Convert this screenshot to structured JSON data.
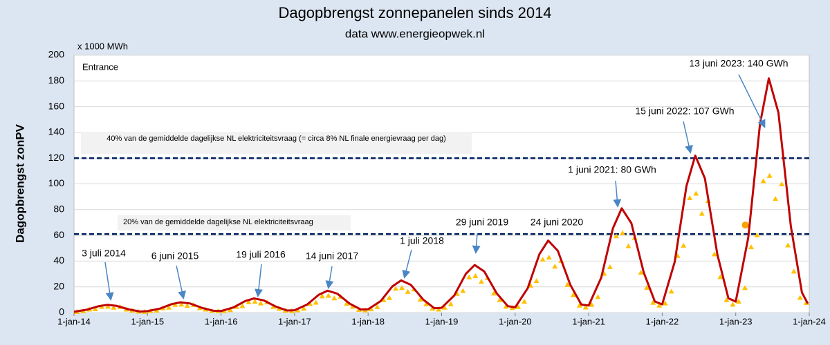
{
  "chart_data": {
    "type": "scatter",
    "title": "Dagopbrengst zonnepanelen sinds 2014",
    "subtitle": "data www.energieopwek.nl",
    "y_unit": "x 1000 MWh",
    "y_label": "Dagopbrengst zonPV",
    "inset_label": "Entrance",
    "xlim": [
      2014,
      2024
    ],
    "xticks": [
      {
        "value": 2014,
        "label": "1-jan-14"
      },
      {
        "value": 2015,
        "label": "1-jan-15"
      },
      {
        "value": 2016,
        "label": "1-jan-16"
      },
      {
        "value": 2017,
        "label": "1-jan-17"
      },
      {
        "value": 2018,
        "label": "1-jan-18"
      },
      {
        "value": 2019,
        "label": "1-jan-19"
      },
      {
        "value": 2020,
        "label": "1-jan-20"
      },
      {
        "value": 2021,
        "label": "1-jan-21"
      },
      {
        "value": 2022,
        "label": "1-jan-22"
      },
      {
        "value": 2023,
        "label": "1-jan-23"
      },
      {
        "value": 2024,
        "label": "1-jan-24"
      }
    ],
    "ylim": [
      0,
      200
    ],
    "yticks": [
      0,
      20,
      40,
      60,
      80,
      100,
      120,
      140,
      160,
      180,
      200
    ],
    "grid": true,
    "reference_lines": [
      {
        "value": 120,
        "label": "40% van de gemiddelde dagelijkse NL elektriciteitsvraag (= circa 8% NL finale energievraag per dag)",
        "color": "#002060"
      },
      {
        "value": 61,
        "label": "20% van de gemiddelde dagelijkse NL elektriciteitsvraag",
        "color": "#002060"
      }
    ],
    "annotations": [
      "3 juli 2014",
      "6 juni 2015",
      "19 juli 2016",
      "14 juni 2017",
      "1 juli 2018",
      "29 juni 2019",
      "24 juni 2020",
      "1 juni 2021: 80 GWh",
      "15 juni 2022: 107 GWh",
      "13 juni 2023: 140 GWh"
    ],
    "curve": {
      "color": "#c00000",
      "x": [
        2014,
        2014.17,
        2014.33,
        2014.45,
        2014.58,
        2014.75,
        2014.9,
        2015,
        2015.17,
        2015.33,
        2015.45,
        2015.58,
        2015.75,
        2015.9,
        2016,
        2016.17,
        2016.33,
        2016.45,
        2016.58,
        2016.75,
        2016.9,
        2017,
        2017.17,
        2017.33,
        2017.45,
        2017.58,
        2017.75,
        2017.9,
        2018,
        2018.17,
        2018.33,
        2018.45,
        2018.58,
        2018.75,
        2018.9,
        2019,
        2019.17,
        2019.33,
        2019.45,
        2019.58,
        2019.75,
        2019.9,
        2020,
        2020.17,
        2020.33,
        2020.45,
        2020.58,
        2020.75,
        2020.9,
        2021,
        2021.17,
        2021.33,
        2021.45,
        2021.58,
        2021.75,
        2021.9,
        2022,
        2022.17,
        2022.33,
        2022.45,
        2022.58,
        2022.75,
        2022.9,
        2023,
        2023.17,
        2023.33,
        2023.45,
        2023.58,
        2023.75,
        2023.9,
        2023.98
      ],
      "values": [
        0.6,
        2.2,
        4.9,
        6,
        5.2,
        2.4,
        0.8,
        1.1,
        3.1,
        6.6,
        8,
        7,
        3.5,
        1.4,
        1.2,
        4,
        9,
        11,
        9.5,
        4.5,
        1.6,
        1.8,
        6.2,
        13.9,
        17,
        14.7,
        6.9,
        2.4,
        2.5,
        8.9,
        20.4,
        25,
        21.6,
        10.1,
        3.4,
        3.7,
        13.2,
        30.2,
        37,
        31.9,
        14.9,
        5,
        4.1,
        18.9,
        45.4,
        56,
        48,
        21.6,
        6.2,
        5.5,
        27.1,
        65.6,
        81,
        69.5,
        31,
        8.6,
        6.4,
        39.4,
        98.4,
        122,
        104.3,
        45.3,
        11.1,
        8.5,
        58.1,
        146.6,
        182,
        155.5,
        67,
        15.6,
        7
      ]
    },
    "series": [
      {
        "color": "#ffc000",
        "x": [
          2014.04,
          2014.125,
          2014.21,
          2014.29,
          2014.375,
          2014.46,
          2014.54,
          2014.625,
          2014.71,
          2014.79,
          2014.875,
          2014.96,
          2015.04,
          2015.125,
          2015.21,
          2015.29,
          2015.375,
          2015.46,
          2015.54,
          2015.625,
          2015.71,
          2015.79,
          2015.875,
          2015.96,
          2016.04,
          2016.125,
          2016.21,
          2016.29,
          2016.375,
          2016.46,
          2016.54,
          2016.625,
          2016.71,
          2016.79,
          2016.875,
          2016.96,
          2017.04,
          2017.125,
          2017.21,
          2017.29,
          2017.375,
          2017.46,
          2017.54,
          2017.625,
          2017.71,
          2017.79,
          2017.875,
          2017.96,
          2018.04,
          2018.125,
          2018.21,
          2018.29,
          2018.375,
          2018.46,
          2018.54,
          2018.625,
          2018.71,
          2018.79,
          2018.875,
          2018.96,
          2019.04,
          2019.125,
          2019.21,
          2019.29,
          2019.375,
          2019.46,
          2019.54,
          2019.625,
          2019.71,
          2019.79,
          2019.875,
          2019.96,
          2020.04,
          2020.125,
          2020.21,
          2020.29,
          2020.375,
          2020.46,
          2020.54,
          2020.625,
          2020.71,
          2020.79,
          2020.875,
          2020.96,
          2021.04,
          2021.125,
          2021.21,
          2021.29,
          2021.375,
          2021.46,
          2021.54,
          2021.625,
          2021.71,
          2021.79,
          2021.875,
          2021.96,
          2022.04,
          2022.125,
          2022.21,
          2022.29,
          2022.375,
          2022.46,
          2022.54,
          2022.625,
          2022.71,
          2022.79,
          2022.875,
          2022.96,
          2023.04,
          2023.125,
          2023.21,
          2023.29,
          2023.375,
          2023.46,
          2023.54,
          2023.625,
          2023.71,
          2023.79,
          2023.875,
          2023.96
        ],
        "values": [
          0.6,
          1.1,
          2.4,
          2.7,
          4.5,
          4.6,
          3.9,
          4.4,
          2.4,
          1.6,
          0.8,
          0.6,
          1.2,
          1.7,
          3.4,
          3.9,
          6,
          6.3,
          5.3,
          5.9,
          3.5,
          2.4,
          1.3,
          1.1,
          1.3,
          2,
          4.4,
          5.1,
          8.2,
          8.5,
          7.2,
          8,
          4.5,
          3,
          1.5,
          1.2,
          1.9,
          3.1,
          6.8,
          7.8,
          12.7,
          13.1,
          11.1,
          12.4,
          6.9,
          4.6,
          2.2,
          1.8,
          2.6,
          4.4,
          9.8,
          11.4,
          18.6,
          19.3,
          16.2,
          18.1,
          10.1,
          6.6,
          3.1,
          2.4,
          3.9,
          6.6,
          14.6,
          16.9,
          27.5,
          28.5,
          24,
          26.9,
          14.9,
          9.8,
          4.6,
          3.6,
          4.4,
          8.6,
          21,
          24.6,
          41.2,
          42.8,
          35.8,
          40.2,
          21.6,
          13.6,
          5.5,
          4,
          6.1,
          12.1,
          30.2,
          35.4,
          59.4,
          61.8,
          51.6,
          58.1,
          31,
          19.4,
          7.7,
          5.5,
          7.2,
          16.4,
          44.1,
          52.1,
          89,
          92.5,
          76.9,
          86.8,
          45.3,
          27.6,
          9.7,
          6.2,
          8.6,
          19.2,
          50.9,
          60.1,
          102.2,
          106.3,
          88.4,
          99.8,
          52.3,
          32,
          11.5,
          7.6
        ]
      },
      {
        "color": "#f4a300",
        "marker": "circle",
        "x": [
          2023.13
        ],
        "values": [
          68
        ]
      }
    ]
  }
}
